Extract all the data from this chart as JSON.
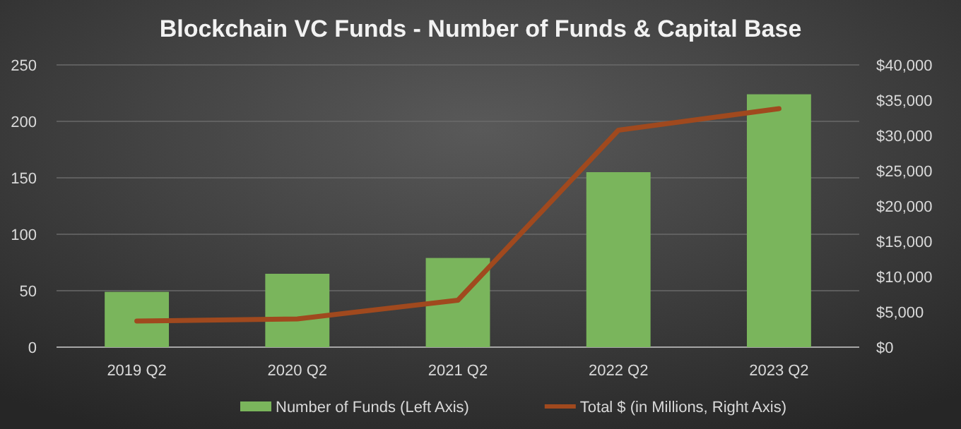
{
  "chart_data": {
    "type": "bar",
    "title": "Blockchain VC Funds - Number of Funds & Capital Base",
    "categories": [
      "2019 Q2",
      "2020 Q2",
      "2021 Q2",
      "2022 Q2",
      "2023 Q2"
    ],
    "series": [
      {
        "name": "Number of Funds (Left Axis)",
        "color": "#7ab55c",
        "values": [
          49,
          65,
          79,
          155,
          224
        ]
      },
      {
        "name": "Total $ (in Millions, Right Axis)",
        "color": "#a0491e",
        "type": "line",
        "axis": "y2",
        "values": [
          3700,
          4000,
          6650,
          30750,
          33800
        ]
      }
    ],
    "ylim": [
      0,
      250
    ],
    "yticks": [
      0,
      50,
      100,
      150,
      200,
      250
    ],
    "y2lim": [
      0,
      40000
    ],
    "y2ticks": [
      {
        "value": 0,
        "label": "$0"
      },
      {
        "value": 5000,
        "label": "$5,000"
      },
      {
        "value": 10000,
        "label": "$10,000"
      },
      {
        "value": 15000,
        "label": "$15,000"
      },
      {
        "value": 20000,
        "label": "$20,000"
      },
      {
        "value": 25000,
        "label": "$25,000"
      },
      {
        "value": 30000,
        "label": "$30,000"
      },
      {
        "value": 35000,
        "label": "$35,000"
      },
      {
        "value": 40000,
        "label": "$40,000"
      }
    ],
    "grid": "y",
    "legend": "bottom",
    "marker": "none",
    "line_style": "solid"
  }
}
